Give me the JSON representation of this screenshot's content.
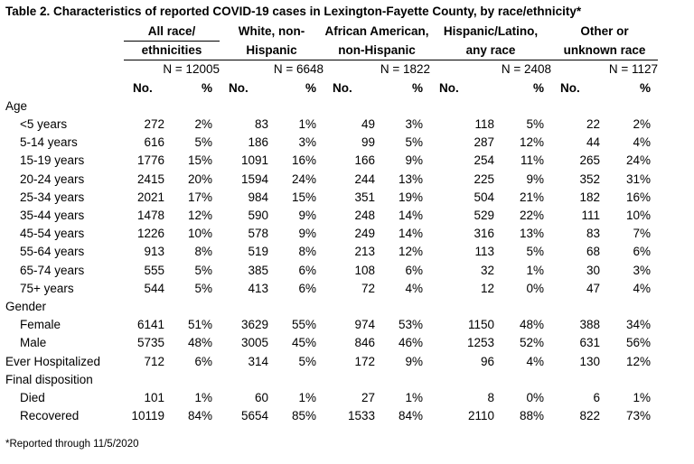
{
  "title": "Table 2. Characteristics of reported COVID-19 cases in Lexington-Fayette County, by race/ethnicity*",
  "groups": [
    {
      "line1": "All race/",
      "line2": "ethnicities",
      "n": "N = 12005"
    },
    {
      "line1": "White, non-",
      "line2": "Hispanic",
      "n": "N = 6648"
    },
    {
      "line1": "African American,",
      "line2": "non-Hispanic",
      "n": "N = 1822"
    },
    {
      "line1": "Hispanic/Latino,",
      "line2": "any race",
      "n": "N = 2408"
    },
    {
      "line1": "Other or",
      "line2": "unknown race",
      "n": "N = 1127"
    }
  ],
  "col_headers": {
    "no": "No.",
    "pct": "%"
  },
  "rows": [
    {
      "label": "Age",
      "cells": []
    },
    {
      "label": "<5 years",
      "cells": [
        "272",
        "2%",
        "83",
        "1%",
        "49",
        "3%",
        "118",
        "5%",
        "22",
        "2%"
      ]
    },
    {
      "label": "5-14 years",
      "cells": [
        "616",
        "5%",
        "186",
        "3%",
        "99",
        "5%",
        "287",
        "12%",
        "44",
        "4%"
      ]
    },
    {
      "label": "15-19 years",
      "cells": [
        "1776",
        "15%",
        "1091",
        "16%",
        "166",
        "9%",
        "254",
        "11%",
        "265",
        "24%"
      ]
    },
    {
      "label": "20-24 years",
      "cells": [
        "2415",
        "20%",
        "1594",
        "24%",
        "244",
        "13%",
        "225",
        "9%",
        "352",
        "31%"
      ]
    },
    {
      "label": "25-34 years",
      "cells": [
        "2021",
        "17%",
        "984",
        "15%",
        "351",
        "19%",
        "504",
        "21%",
        "182",
        "16%"
      ]
    },
    {
      "label": "35-44 years",
      "cells": [
        "1478",
        "12%",
        "590",
        "9%",
        "248",
        "14%",
        "529",
        "22%",
        "111",
        "10%"
      ]
    },
    {
      "label": "45-54 years",
      "cells": [
        "1226",
        "10%",
        "578",
        "9%",
        "249",
        "14%",
        "316",
        "13%",
        "83",
        "7%"
      ]
    },
    {
      "label": "55-64 years",
      "cells": [
        "913",
        "8%",
        "519",
        "8%",
        "213",
        "12%",
        "113",
        "5%",
        "68",
        "6%"
      ]
    },
    {
      "label": "65-74 years",
      "cells": [
        "555",
        "5%",
        "385",
        "6%",
        "108",
        "6%",
        "32",
        "1%",
        "30",
        "3%"
      ]
    },
    {
      "label": "75+ years",
      "cells": [
        "544",
        "5%",
        "413",
        "6%",
        "72",
        "4%",
        "12",
        "0%",
        "47",
        "4%"
      ]
    },
    {
      "label": "Gender",
      "cells": []
    },
    {
      "label": "Female",
      "cells": [
        "6141",
        "51%",
        "3629",
        "55%",
        "974",
        "53%",
        "1150",
        "48%",
        "388",
        "34%"
      ]
    },
    {
      "label": "Male",
      "cells": [
        "5735",
        "48%",
        "3005",
        "45%",
        "846",
        "46%",
        "1253",
        "52%",
        "631",
        "56%"
      ]
    },
    {
      "label": "Ever Hospitalized",
      "cells": [
        "712",
        "6%",
        "314",
        "5%",
        "172",
        "9%",
        "96",
        "4%",
        "130",
        "12%"
      ]
    },
    {
      "label": "Final disposition",
      "cells": []
    },
    {
      "label": "Died",
      "cells": [
        "101",
        "1%",
        "60",
        "1%",
        "27",
        "1%",
        "8",
        "0%",
        "6",
        "1%"
      ]
    },
    {
      "label": "Recovered",
      "cells": [
        "10119",
        "84%",
        "5654",
        "85%",
        "1533",
        "84%",
        "2110",
        "88%",
        "822",
        "73%"
      ]
    }
  ],
  "footnote": "*Reported through 11/5/2020"
}
